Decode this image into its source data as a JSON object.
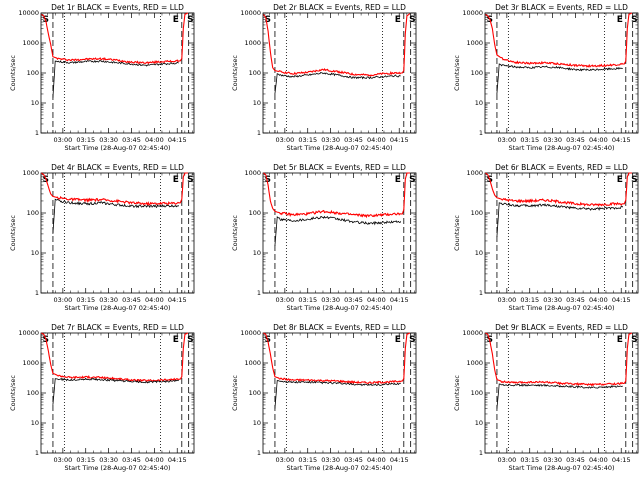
{
  "figure": {
    "x_time_labels": [
      "03:00",
      "03:15",
      "03:30",
      "03:45",
      "04:00",
      "04:15"
    ],
    "x_time_minutes": [
      180,
      195,
      210,
      225,
      240,
      255
    ],
    "markers": {
      "start": "S",
      "end": "E"
    },
    "vlines": {
      "dashed_minutes": [
        173.5,
        258,
        262.5
      ],
      "dotted_minutes": [
        181,
        244
      ],
      "S_minutes": 173.5,
      "E_minutes": 258,
      "S2_minutes": 262.5
    },
    "colors": {
      "events": "#000000",
      "lld": "#ff0000"
    }
  },
  "chart_data": [
    {
      "type": "line",
      "title": "Det 1r BLACK = Events, RED = LLD",
      "xlabel": "Start Time (28-Aug-07 02:45:40)",
      "ylabel": "Counts/sec",
      "xlim": [
        165.67,
        266
      ],
      "ylim": [
        1,
        10000
      ],
      "yscale": "log",
      "yticks": [
        "1",
        "10",
        "100",
        "1000",
        "10000"
      ],
      "series": [
        {
          "color": "red",
          "x": [
            166,
            167.5,
            169,
            170.5,
            172,
            173.5,
            177,
            185,
            195,
            205,
            215,
            225,
            235,
            245,
            252,
            257,
            258,
            259,
            260,
            262
          ],
          "values": [
            9000,
            8000,
            5000,
            2000,
            900,
            350,
            300,
            270,
            290,
            300,
            270,
            230,
            220,
            240,
            245,
            255,
            300,
            3000,
            9000,
            10000
          ]
        },
        {
          "color": "black",
          "x": [
            173.5,
            175,
            177,
            185,
            195,
            205,
            215,
            225,
            235,
            245,
            252,
            256
          ],
          "values": [
            15,
            250,
            240,
            220,
            240,
            250,
            220,
            200,
            180,
            200,
            210,
            215
          ]
        }
      ]
    },
    {
      "type": "line",
      "title": "Det 2r BLACK = Events, RED = LLD",
      "xlabel": "Start Time (28-Aug-07 02:45:40)",
      "ylabel": "Counts/sec",
      "xlim": [
        165.67,
        266
      ],
      "ylim": [
        1,
        10000
      ],
      "yscale": "log",
      "yticks": [
        "1",
        "10",
        "100",
        "1000",
        "10000"
      ],
      "series": [
        {
          "color": "red",
          "x": [
            166,
            167.5,
            169,
            170.5,
            172,
            173.5,
            177,
            185,
            195,
            205,
            215,
            225,
            235,
            245,
            252,
            257,
            258,
            259,
            260,
            262
          ],
          "values": [
            9000,
            7000,
            2500,
            500,
            150,
            120,
            110,
            95,
            105,
            130,
            110,
            90,
            85,
            95,
            100,
            100,
            120,
            2000,
            8000,
            9500
          ]
        },
        {
          "color": "black",
          "x": [
            173.5,
            175,
            177,
            185,
            195,
            205,
            215,
            225,
            235,
            245,
            252,
            256
          ],
          "values": [
            20,
            95,
            85,
            75,
            85,
            100,
            85,
            70,
            70,
            75,
            80,
            80
          ]
        }
      ]
    },
    {
      "type": "line",
      "title": "Det 3r BLACK = Events, RED = LLD",
      "xlabel": "Start Time (28-Aug-07 02:45:40)",
      "ylabel": "Counts/sec",
      "xlim": [
        165.67,
        266
      ],
      "ylim": [
        1,
        10000
      ],
      "yscale": "log",
      "yticks": [
        "1",
        "10",
        "100",
        "1000",
        "10000"
      ],
      "series": [
        {
          "color": "red",
          "x": [
            166,
            167.5,
            169,
            170.5,
            172,
            173.5,
            177,
            185,
            195,
            205,
            215,
            225,
            235,
            245,
            252,
            257,
            258,
            259,
            260,
            262
          ],
          "values": [
            9000,
            8000,
            6000,
            3000,
            900,
            400,
            300,
            230,
            210,
            220,
            200,
            180,
            170,
            180,
            190,
            200,
            250,
            3000,
            9000,
            10000
          ]
        },
        {
          "color": "black",
          "x": [
            173.5,
            175,
            177,
            185,
            195,
            205,
            215,
            225,
            235,
            245,
            252,
            256
          ],
          "values": [
            20,
            200,
            180,
            160,
            150,
            160,
            150,
            130,
            125,
            135,
            140,
            145
          ]
        }
      ]
    },
    {
      "type": "line",
      "title": "Det 4r BLACK = Events, RED = LLD",
      "xlabel": "Start Time (28-Aug-07 02:45:40)",
      "ylabel": "Counts/sec",
      "xlim": [
        165.67,
        266
      ],
      "ylim": [
        1,
        1000
      ],
      "yscale": "log",
      "yticks": [
        "1",
        "10",
        "100",
        "1000"
      ],
      "series": [
        {
          "color": "red",
          "x": [
            166,
            167.5,
            169,
            170.5,
            172,
            173.5,
            177,
            185,
            195,
            205,
            215,
            225,
            235,
            245,
            252,
            257,
            258,
            259,
            260,
            262
          ],
          "values": [
            1000,
            900,
            700,
            450,
            300,
            260,
            240,
            220,
            210,
            215,
            200,
            180,
            170,
            175,
            175,
            180,
            220,
            800,
            1000,
            1000
          ]
        },
        {
          "color": "black",
          "x": [
            173.5,
            175,
            177,
            185,
            195,
            205,
            215,
            225,
            235,
            245,
            252,
            256
          ],
          "values": [
            30,
            220,
            200,
            180,
            170,
            180,
            160,
            150,
            145,
            150,
            150,
            155
          ]
        }
      ]
    },
    {
      "type": "line",
      "title": "Det 5r BLACK = Events, RED = LLD",
      "xlabel": "Start Time (28-Aug-07 02:45:40)",
      "ylabel": "Counts/sec",
      "xlim": [
        165.67,
        266
      ],
      "ylim": [
        1,
        1000
      ],
      "yscale": "log",
      "yticks": [
        "1",
        "10",
        "100",
        "1000"
      ],
      "series": [
        {
          "color": "red",
          "x": [
            166,
            167.5,
            169,
            170.5,
            172,
            173.5,
            177,
            185,
            195,
            205,
            215,
            225,
            235,
            245,
            252,
            257,
            258,
            259,
            260,
            262
          ],
          "values": [
            1000,
            900,
            500,
            200,
            130,
            110,
            100,
            90,
            95,
            110,
            100,
            90,
            85,
            90,
            95,
            95,
            120,
            700,
            1000,
            1000
          ]
        },
        {
          "color": "black",
          "x": [
            173.5,
            175,
            177,
            185,
            195,
            205,
            215,
            225,
            235,
            245,
            252,
            256
          ],
          "values": [
            15,
            80,
            70,
            65,
            70,
            80,
            70,
            60,
            55,
            58,
            60,
            62
          ]
        }
      ]
    },
    {
      "type": "line",
      "title": "Det 6r BLACK = Events, RED = LLD",
      "xlabel": "Start Time (28-Aug-07 02:45:40)",
      "ylabel": "Counts/sec",
      "xlim": [
        165.67,
        266
      ],
      "ylim": [
        1,
        1000
      ],
      "yscale": "log",
      "yticks": [
        "1",
        "10",
        "100",
        "1000"
      ],
      "series": [
        {
          "color": "red",
          "x": [
            166,
            167.5,
            169,
            170.5,
            172,
            173.5,
            177,
            185,
            195,
            205,
            215,
            225,
            235,
            245,
            252,
            257,
            258,
            259,
            260,
            262
          ],
          "values": [
            1000,
            900,
            650,
            400,
            280,
            240,
            220,
            200,
            200,
            210,
            190,
            170,
            160,
            165,
            170,
            170,
            210,
            800,
            1000,
            1000
          ]
        },
        {
          "color": "black",
          "x": [
            173.5,
            175,
            177,
            185,
            195,
            205,
            215,
            225,
            235,
            245,
            252,
            256
          ],
          "values": [
            25,
            180,
            170,
            155,
            150,
            160,
            145,
            130,
            125,
            130,
            135,
            140
          ]
        }
      ]
    },
    {
      "type": "line",
      "title": "Det 7r BLACK = Events, RED = LLD",
      "xlabel": "Start Time (28-Aug-07 02:45:40)",
      "ylabel": "Counts/sec",
      "xlim": [
        165.67,
        266
      ],
      "ylim": [
        1,
        10000
      ],
      "yscale": "log",
      "yticks": [
        "1",
        "10",
        "100",
        "1000",
        "10000"
      ],
      "series": [
        {
          "color": "red",
          "x": [
            166,
            167.5,
            169,
            170.5,
            172,
            173.5,
            177,
            185,
            195,
            205,
            215,
            225,
            235,
            245,
            252,
            257,
            258,
            259,
            260,
            262
          ],
          "values": [
            10000,
            9000,
            6000,
            2500,
            900,
            450,
            380,
            330,
            340,
            330,
            300,
            270,
            260,
            270,
            280,
            290,
            350,
            3000,
            9000,
            10000
          ]
        },
        {
          "color": "black",
          "x": [
            173.5,
            175,
            177,
            185,
            195,
            205,
            215,
            225,
            235,
            245,
            252,
            256
          ],
          "values": [
            40,
            300,
            290,
            270,
            290,
            280,
            260,
            240,
            230,
            240,
            250,
            255
          ]
        }
      ]
    },
    {
      "type": "line",
      "title": "Det 8r BLACK = Events, RED = LLD",
      "xlabel": "Start Time (28-Aug-07 02:45:40)",
      "ylabel": "Counts/sec",
      "xlim": [
        165.67,
        266
      ],
      "ylim": [
        1,
        10000
      ],
      "yscale": "log",
      "yticks": [
        "1",
        "10",
        "100",
        "1000",
        "10000"
      ],
      "series": [
        {
          "color": "red",
          "x": [
            166,
            167.5,
            169,
            170.5,
            172,
            173.5,
            177,
            185,
            195,
            205,
            215,
            225,
            235,
            245,
            252,
            257,
            258,
            259,
            260,
            262
          ],
          "values": [
            10000,
            9000,
            5000,
            2000,
            700,
            350,
            300,
            270,
            270,
            260,
            250,
            230,
            220,
            230,
            240,
            250,
            300,
            3000,
            9000,
            10000
          ]
        },
        {
          "color": "black",
          "x": [
            173.5,
            175,
            177,
            185,
            195,
            205,
            215,
            225,
            235,
            245,
            252,
            256
          ],
          "values": [
            30,
            260,
            250,
            230,
            230,
            220,
            210,
            195,
            185,
            190,
            200,
            205
          ]
        }
      ]
    },
    {
      "type": "line",
      "title": "Det 9r BLACK = Events, RED = LLD",
      "xlabel": "Start Time (28-Aug-07 02:45:40)",
      "ylabel": "Counts/sec",
      "xlim": [
        165.67,
        266
      ],
      "ylim": [
        1,
        10000
      ],
      "yscale": "log",
      "yticks": [
        "1",
        "10",
        "100",
        "1000",
        "10000"
      ],
      "series": [
        {
          "color": "red",
          "x": [
            166,
            167.5,
            169,
            170.5,
            172,
            173.5,
            177,
            185,
            195,
            205,
            215,
            225,
            235,
            245,
            252,
            257,
            258,
            259,
            260,
            262
          ],
          "values": [
            10000,
            9000,
            5000,
            2000,
            600,
            280,
            240,
            220,
            230,
            230,
            210,
            200,
            190,
            200,
            205,
            210,
            250,
            3000,
            9000,
            10000
          ]
        },
        {
          "color": "black",
          "x": [
            173.5,
            175,
            177,
            185,
            195,
            205,
            215,
            225,
            235,
            245,
            252,
            256
          ],
          "values": [
            30,
            200,
            190,
            180,
            185,
            180,
            170,
            160,
            150,
            160,
            165,
            170
          ]
        }
      ]
    }
  ]
}
